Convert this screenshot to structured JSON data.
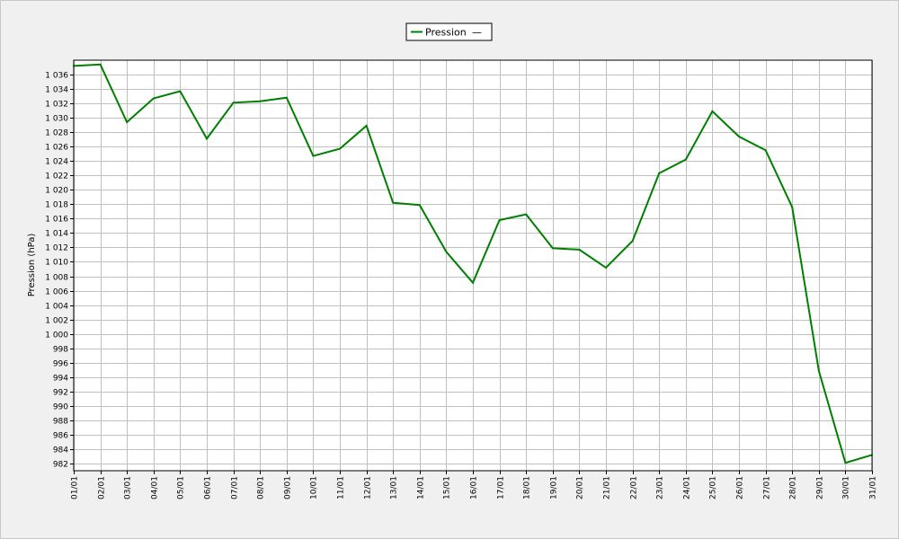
{
  "chart_data": {
    "type": "line",
    "title": "",
    "xlabel": "",
    "ylabel": "Pression (hPa)",
    "legend": {
      "placement": "top-center",
      "entries": [
        "Pression"
      ],
      "suffix": "—"
    },
    "grid": true,
    "ylim": [
      981,
      1038
    ],
    "y_ticks": [
      982,
      984,
      986,
      988,
      990,
      992,
      994,
      996,
      998,
      1000,
      1002,
      1004,
      1006,
      1008,
      1010,
      1012,
      1014,
      1016,
      1018,
      1020,
      1022,
      1024,
      1026,
      1028,
      1030,
      1032,
      1034,
      1036
    ],
    "y_tick_labels": [
      "982",
      "984",
      "986",
      "988",
      "990",
      "992",
      "994",
      "996",
      "998",
      "1 000",
      "1 002",
      "1 004",
      "1 006",
      "1 008",
      "1 010",
      "1 012",
      "1 014",
      "1 016",
      "1 018",
      "1 020",
      "1 022",
      "1 024",
      "1 026",
      "1 028",
      "1 030",
      "1 032",
      "1 034",
      "1 036"
    ],
    "categories": [
      "01/01",
      "02/01",
      "03/01",
      "04/01",
      "05/01",
      "06/01",
      "07/01",
      "08/01",
      "09/01",
      "10/01",
      "11/01",
      "12/01",
      "13/01",
      "14/01",
      "15/01",
      "16/01",
      "17/01",
      "18/01",
      "19/01",
      "20/01",
      "21/01",
      "22/01",
      "23/01",
      "24/01",
      "25/01",
      "26/01",
      "27/01",
      "28/01",
      "29/01",
      "30/01",
      "31/01"
    ],
    "series": [
      {
        "name": "Pression",
        "color": "#008000",
        "values": [
          1037.2,
          1037.4,
          1029.4,
          1032.7,
          1033.7,
          1027.1,
          1032.1,
          1032.3,
          1032.8,
          1024.7,
          1025.7,
          1028.9,
          1018.2,
          1017.9,
          1011.4,
          1007.1,
          1015.8,
          1016.6,
          1011.9,
          1011.7,
          1009.2,
          1012.9,
          1022.3,
          1024.2,
          1030.9,
          1027.4,
          1025.5,
          1017.6,
          994.9,
          982.1,
          983.2
        ]
      }
    ]
  }
}
